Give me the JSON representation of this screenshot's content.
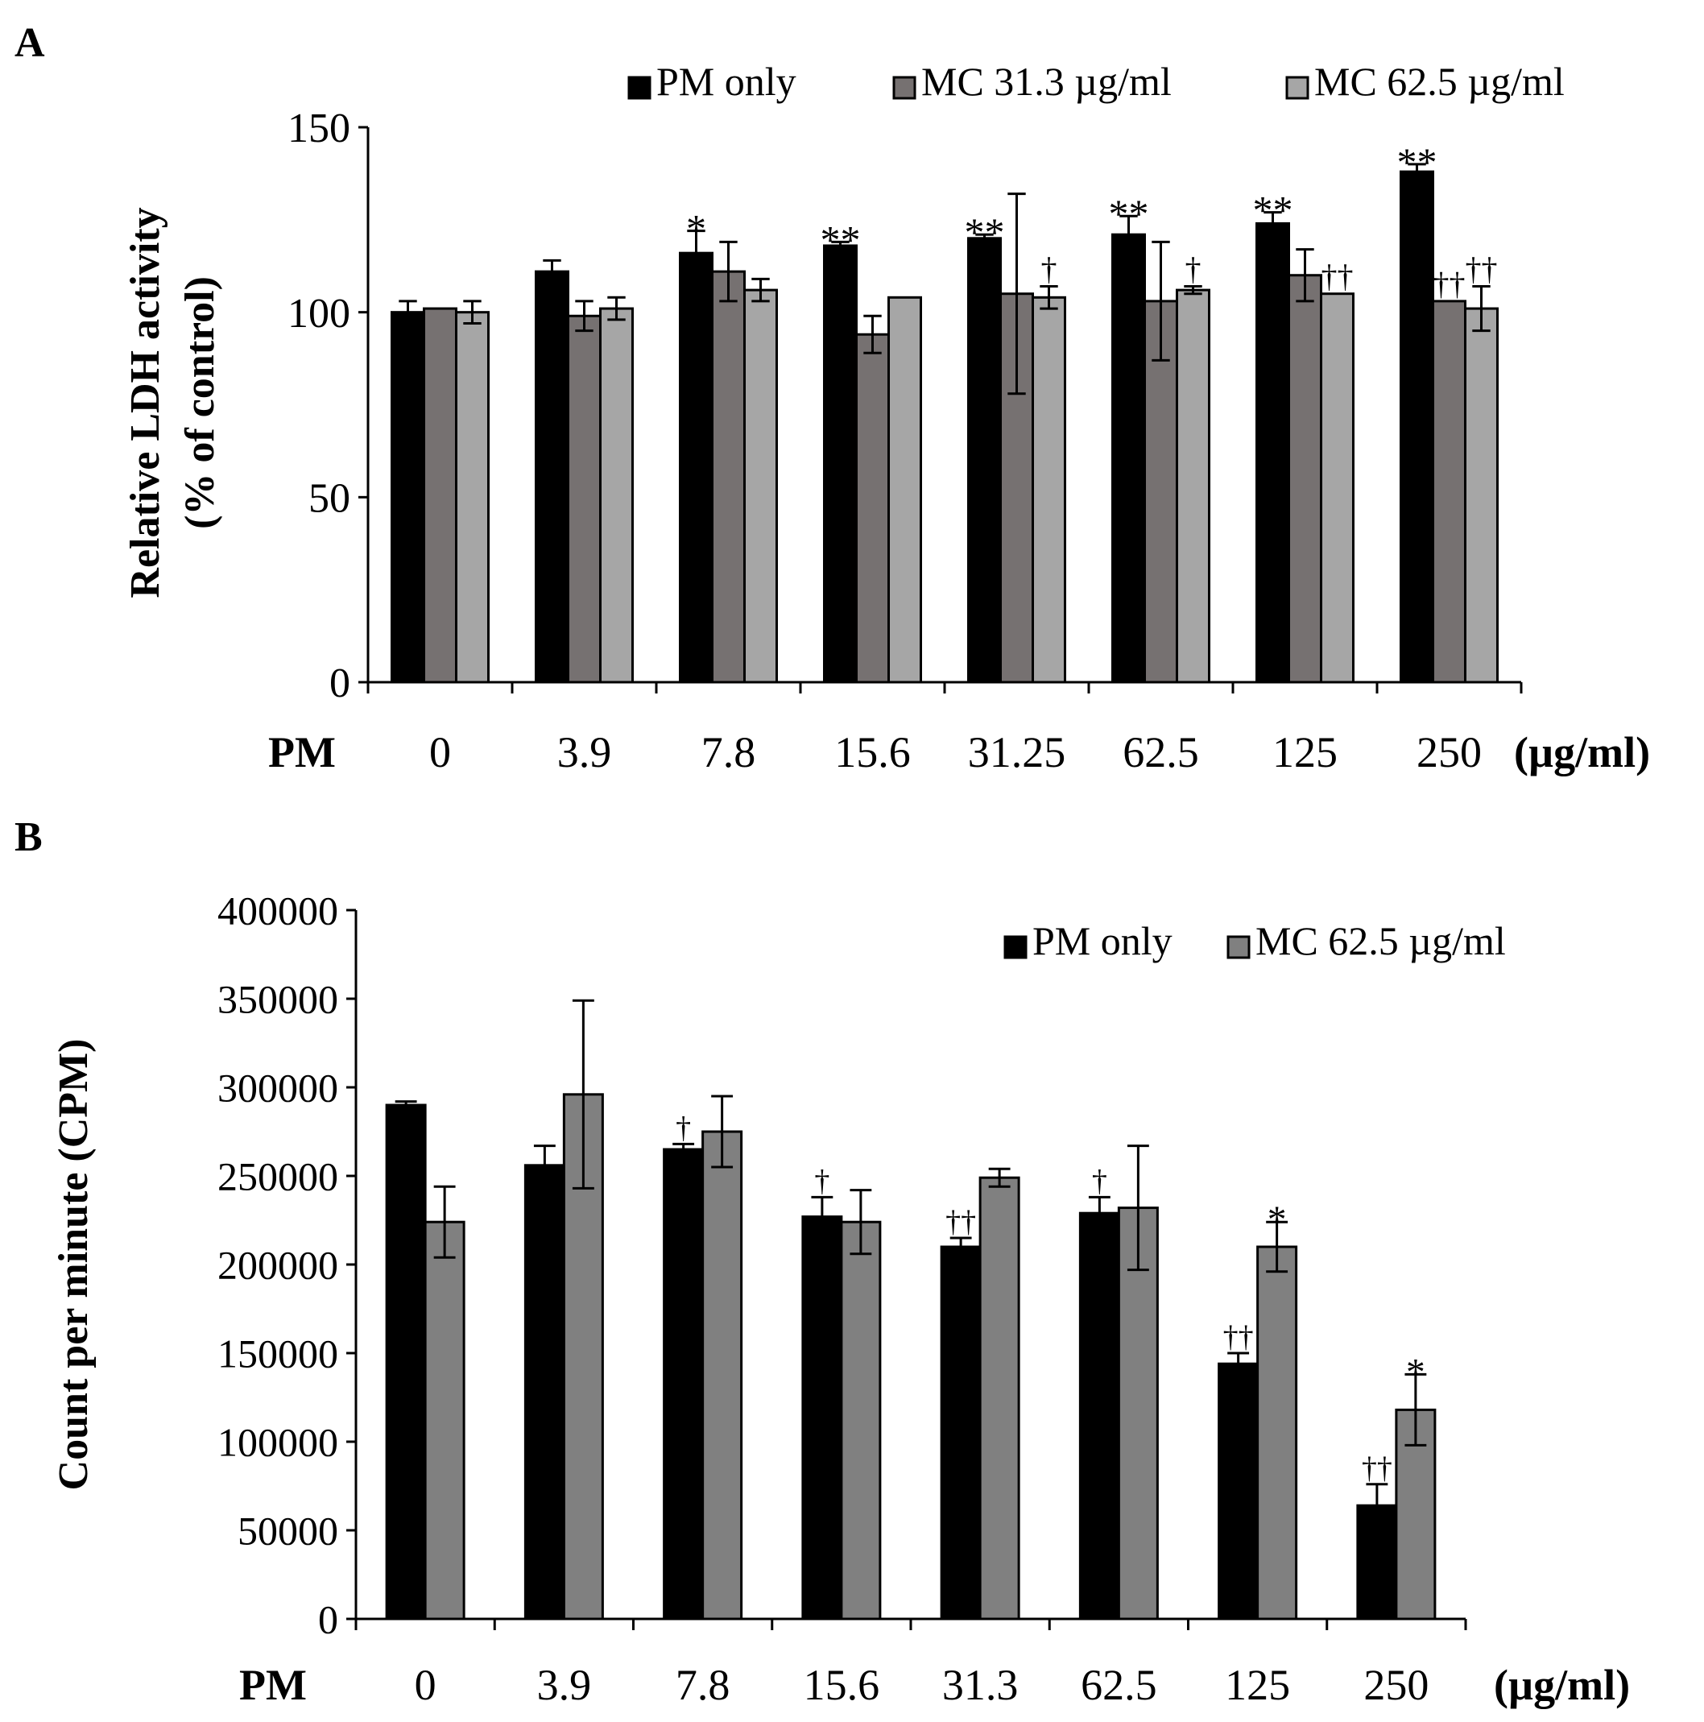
{
  "colors": {
    "pm_only": "#000000",
    "mc_31_3": "#767171",
    "mc_62_5_a": "#a6a6a6",
    "mc_62_5_b": "#808080",
    "axis": "#000000",
    "background": "#ffffff"
  },
  "chart_data": [
    {
      "panel": "A",
      "type": "bar",
      "ylabel_line1": "Relative LDH activity",
      "ylabel_line2": "(% of control)",
      "x_prefix": "PM",
      "x_unit": "(µg/ml)",
      "ylim": [
        0,
        150
      ],
      "yticks": [
        "0",
        "50",
        "100",
        "150"
      ],
      "categories": [
        "0",
        "3.9",
        "7.8",
        "15.6",
        "31.25",
        "62.5",
        "125",
        "250"
      ],
      "legend_position": "top",
      "grid": false,
      "series": [
        {
          "name": "PM only",
          "color_key": "pm_only",
          "values": [
            100,
            111,
            116,
            118,
            120,
            121,
            124,
            138
          ],
          "errors": [
            3,
            3,
            6,
            1,
            1,
            5,
            3,
            2
          ],
          "annotations": [
            "",
            "",
            "*",
            "**",
            "**",
            "**",
            "**",
            "**"
          ]
        },
        {
          "name": "MC 31.3 µg/ml",
          "color_key": "mc_31_3",
          "values": [
            101,
            99,
            111,
            94,
            105,
            103,
            110,
            103
          ],
          "errors": [
            0,
            4,
            8,
            5,
            27,
            16,
            7,
            0
          ],
          "annotations": [
            "",
            "",
            "",
            "",
            "",
            "",
            "",
            "††"
          ]
        },
        {
          "name": "MC 62.5 µg/ml",
          "color_key": "mc_62_5_a",
          "values": [
            100,
            101,
            106,
            104,
            104,
            106,
            105,
            101
          ],
          "errors": [
            3,
            3,
            3,
            0,
            3,
            1,
            0,
            6
          ],
          "annotations": [
            "",
            "",
            "",
            "",
            "†",
            "†",
            "††",
            "††"
          ]
        }
      ]
    },
    {
      "panel": "B",
      "type": "bar",
      "ylabel": "Count per minute (CPM)",
      "x_prefix": "PM",
      "x_unit": "(µg/ml)",
      "ylim": [
        0,
        400000
      ],
      "yticks": [
        "0",
        "50000",
        "100000",
        "150000",
        "200000",
        "250000",
        "300000",
        "350000",
        "400000"
      ],
      "categories": [
        "0",
        "3.9",
        "7.8",
        "15.6",
        "31.3",
        "62.5",
        "125",
        "250"
      ],
      "legend_position": "top-right",
      "grid": false,
      "series": [
        {
          "name": "PM only",
          "color_key": "pm_only",
          "values": [
            290000,
            256000,
            265000,
            227000,
            210000,
            229000,
            144000,
            64000
          ],
          "errors": [
            2000,
            11000,
            3000,
            11000,
            5000,
            9000,
            6000,
            12000
          ],
          "annotations": [
            "",
            "",
            "†",
            "†",
            "††",
            "†",
            "††",
            "††"
          ]
        },
        {
          "name": "MC 62.5 µg/ml",
          "color_key": "mc_62_5_b",
          "values": [
            224000,
            296000,
            275000,
            224000,
            249000,
            232000,
            210000,
            118000
          ],
          "errors": [
            20000,
            53000,
            20000,
            18000,
            5000,
            35000,
            14000,
            20000
          ],
          "annotations": [
            "",
            "",
            "",
            "",
            "",
            "",
            "*",
            "*"
          ]
        }
      ]
    }
  ]
}
